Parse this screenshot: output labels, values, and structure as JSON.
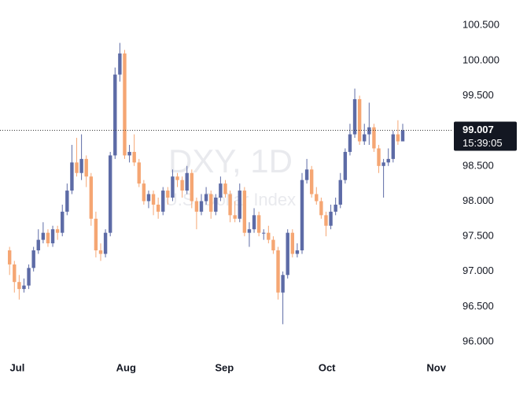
{
  "chart_data": {
    "type": "candlestick",
    "watermark": {
      "symbol": "DXY, 1D",
      "name": "U.S. Dollar Index"
    },
    "countdown": "15:39:05",
    "up_color": "#5d6ba6",
    "down_color": "#f5a673",
    "last_line_color": "#333333",
    "grid": false,
    "xlim": [
      -2,
      92.5
    ],
    "xticks": [
      {
        "value": 1.6,
        "label": "Jul"
      },
      {
        "value": 24.3,
        "label": "Aug"
      },
      {
        "value": 44.8,
        "label": "Sep"
      },
      {
        "value": 66.2,
        "label": "Oct"
      },
      {
        "value": 89,
        "label": "Nov"
      }
    ],
    "ylim": [
      95.8,
      100.86
    ],
    "yticks": [
      {
        "value": 96,
        "label": "96.000"
      },
      {
        "value": 96.5,
        "label": "96.500"
      },
      {
        "value": 97,
        "label": "97.000"
      },
      {
        "value": 97.5,
        "label": "97.500"
      },
      {
        "value": 98,
        "label": "98.000"
      },
      {
        "value": 98.5,
        "label": "98.500"
      },
      {
        "value": 99.5,
        "label": "99.500"
      },
      {
        "value": 100,
        "label": "100.000"
      },
      {
        "value": 100.5,
        "label": "100.500"
      }
    ],
    "open": [
      97.3,
      97.1,
      96.85,
      96.75,
      96.8,
      97.05,
      97.3,
      97.45,
      97.55,
      97.4,
      97.6,
      97.55,
      97.85,
      98.15,
      98.55,
      98.4,
      98.6,
      98.35,
      97.75,
      97.3,
      97.25,
      97.55,
      98.65,
      99.8,
      100.1,
      98.65,
      98.7,
      98.55,
      98.25,
      98.0,
      98.1,
      97.95,
      97.85,
      98.15,
      98.05,
      98.35,
      98.3,
      98.15,
      98.4,
      98.0,
      97.85,
      98.0,
      98.1,
      97.85,
      98.05,
      98.25,
      98.1,
      97.8,
      97.75,
      98.15,
      97.55,
      97.6,
      97.8,
      97.55,
      97.55,
      97.45,
      97.3,
      96.7,
      96.95,
      97.55,
      97.25,
      97.3,
      98.3,
      98.45,
      98.1,
      98.0,
      97.8,
      97.65,
      97.85,
      97.95,
      98.3,
      98.7,
      98.95,
      99.45,
      98.85,
      98.95,
      99.05,
      98.75,
      98.5,
      98.55,
      98.6,
      98.95,
      98.85
    ],
    "high": [
      97.35,
      97.15,
      96.95,
      96.9,
      97.1,
      97.35,
      97.6,
      97.7,
      97.6,
      97.65,
      97.65,
      97.95,
      98.25,
      98.8,
      98.9,
      98.95,
      98.65,
      98.4,
      97.85,
      97.4,
      97.6,
      98.7,
      99.9,
      100.25,
      100.15,
      98.8,
      98.95,
      98.6,
      98.3,
      98.15,
      98.15,
      98.05,
      98.2,
      98.2,
      98.45,
      98.4,
      98.35,
      98.5,
      98.45,
      98.05,
      98.1,
      98.2,
      98.15,
      98.1,
      98.35,
      98.3,
      98.15,
      98.0,
      98.25,
      98.2,
      97.7,
      97.9,
      97.85,
      97.6,
      97.65,
      97.5,
      97.35,
      97.0,
      97.6,
      97.6,
      97.4,
      98.4,
      98.6,
      98.5,
      98.2,
      98.05,
      97.85,
      97.95,
      98.05,
      98.4,
      98.75,
      99.1,
      99.6,
      99.5,
      99.1,
      99.4,
      99.1,
      98.8,
      98.6,
      98.75,
      99.0,
      99.15,
      99.1
    ],
    "low": [
      96.95,
      96.7,
      96.6,
      96.7,
      96.75,
      97.0,
      97.25,
      97.4,
      97.35,
      97.35,
      97.45,
      97.5,
      97.8,
      98.1,
      98.35,
      98.3,
      98.2,
      97.65,
      97.2,
      97.15,
      97.2,
      97.5,
      98.6,
      99.7,
      98.6,
      98.55,
      98.5,
      98.2,
      97.95,
      97.9,
      97.8,
      97.75,
      97.8,
      97.95,
      98.0,
      98.2,
      98.05,
      98.1,
      97.9,
      97.6,
      97.8,
      97.95,
      97.75,
      97.8,
      98.0,
      98.05,
      97.7,
      97.7,
      97.7,
      97.5,
      97.35,
      97.55,
      97.5,
      97.45,
      97.4,
      97.25,
      96.6,
      96.25,
      96.9,
      97.2,
      97.2,
      97.25,
      98.25,
      98.05,
      97.95,
      97.75,
      97.5,
      97.6,
      97.8,
      97.9,
      98.25,
      98.65,
      98.9,
      98.8,
      98.8,
      98.8,
      98.7,
      98.4,
      98.05,
      98.5,
      98.55,
      98.8,
      98.85
    ],
    "close": [
      97.1,
      96.85,
      96.75,
      96.8,
      97.05,
      97.3,
      97.45,
      97.55,
      97.4,
      97.6,
      97.55,
      97.85,
      98.15,
      98.55,
      98.4,
      98.6,
      98.35,
      97.75,
      97.3,
      97.25,
      97.55,
      98.65,
      99.8,
      100.1,
      98.65,
      98.7,
      98.55,
      98.25,
      98.0,
      98.1,
      97.95,
      97.85,
      98.15,
      98.05,
      98.35,
      98.3,
      98.15,
      98.4,
      98.0,
      97.85,
      98.0,
      98.1,
      97.85,
      98.05,
      98.25,
      98.1,
      97.8,
      97.75,
      98.15,
      97.55,
      97.6,
      97.8,
      97.55,
      97.55,
      97.45,
      97.3,
      96.7,
      96.95,
      97.55,
      97.25,
      97.3,
      98.3,
      98.45,
      98.1,
      98.0,
      97.8,
      97.65,
      97.85,
      97.95,
      98.3,
      98.7,
      98.95,
      99.45,
      98.85,
      98.95,
      99.05,
      98.75,
      98.5,
      98.55,
      98.6,
      98.95,
      98.85,
      99.007
    ]
  }
}
